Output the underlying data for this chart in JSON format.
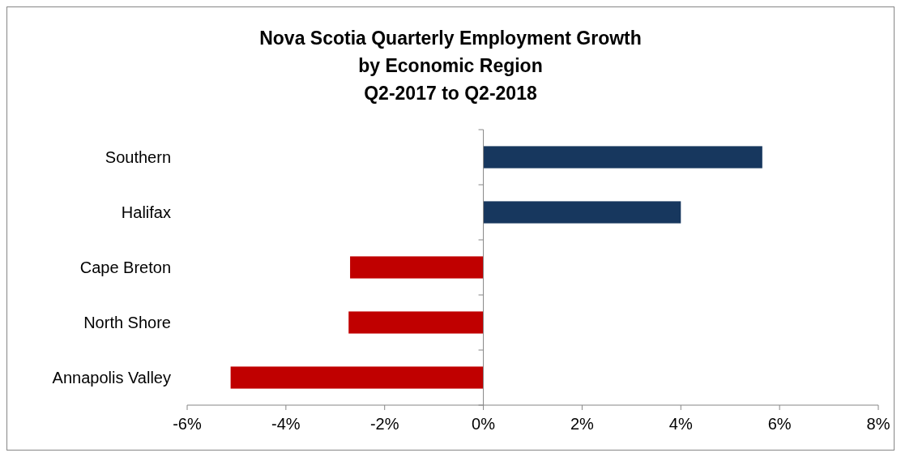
{
  "chart_data": {
    "type": "bar",
    "title": "Nova Scotia Quarterly Employment Growth\nby Economic Region\nQ2-2017 to Q2-2018",
    "categories": [
      "Southern",
      "Halifax",
      "Cape Breton",
      "North Shore",
      "Annapolis Valley"
    ],
    "values": [
      5.65,
      4.0,
      -2.7,
      -2.73,
      -5.12
    ],
    "colors": [
      "#17375e",
      "#17375e",
      "#c00000",
      "#c00000",
      "#c00000"
    ],
    "xlim": [
      -6,
      8
    ],
    "xticks": [
      {
        "value": -6,
        "label": "-6%"
      },
      {
        "value": -4,
        "label": "-4%"
      },
      {
        "value": -2,
        "label": "-2%"
      },
      {
        "value": 0,
        "label": "0%"
      },
      {
        "value": 2,
        "label": "2%"
      },
      {
        "value": 4,
        "label": "4%"
      },
      {
        "value": 6,
        "label": "6%"
      },
      {
        "value": 8,
        "label": "8%"
      }
    ],
    "orientation": "horizontal"
  }
}
